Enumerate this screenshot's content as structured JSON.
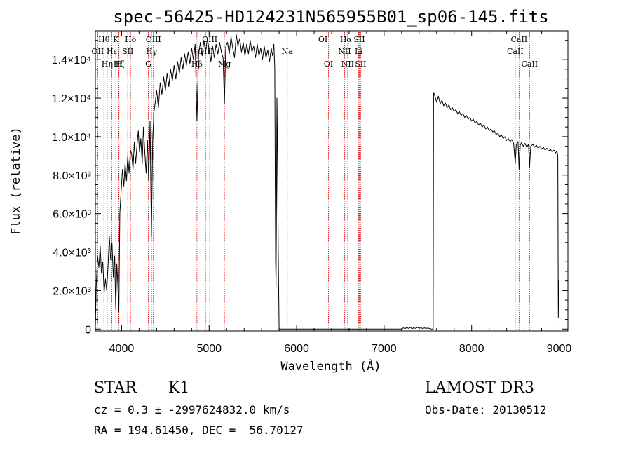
{
  "chart_data": {
    "type": "line",
    "title": "spec-56425-HD124231N565955B01_sp06-145.fits",
    "xlabel": "Wavelength (Å)",
    "ylabel": "Flux (relative)",
    "xlim": [
      3700,
      9100
    ],
    "ylim": [
      -100,
      15500
    ],
    "x_ticks": [
      {
        "value": 4000,
        "label": "4000"
      },
      {
        "value": 5000,
        "label": "5000"
      },
      {
        "value": 6000,
        "label": "6000"
      },
      {
        "value": 7000,
        "label": "7000"
      },
      {
        "value": 8000,
        "label": "8000"
      },
      {
        "value": 9000,
        "label": "9000"
      }
    ],
    "y_ticks": [
      {
        "value": 0,
        "label": "0"
      },
      {
        "value": 2000,
        "label": "2.0×10³"
      },
      {
        "value": 4000,
        "label": "4.0×10³"
      },
      {
        "value": 6000,
        "label": "6.0×10³"
      },
      {
        "value": 8000,
        "label": "8.0×10³"
      },
      {
        "value": 10000,
        "label": "1.0×10⁴"
      },
      {
        "value": 12000,
        "label": "1.2×10⁴"
      },
      {
        "value": 14000,
        "label": "1.4×10⁴"
      }
    ],
    "grid": false,
    "legend": "none",
    "series_color": "#000000",
    "line_marker_color": "#cc0000",
    "spectrum": [
      [
        3700,
        0
      ],
      [
        3710,
        2200
      ],
      [
        3725,
        3800
      ],
      [
        3740,
        3200
      ],
      [
        3755,
        4300
      ],
      [
        3770,
        2900
      ],
      [
        3785,
        3500
      ],
      [
        3800,
        1900
      ],
      [
        3815,
        2600
      ],
      [
        3830,
        2000
      ],
      [
        3845,
        3300
      ],
      [
        3860,
        4800
      ],
      [
        3875,
        3600
      ],
      [
        3890,
        4500
      ],
      [
        3905,
        2700
      ],
      [
        3920,
        3800
      ],
      [
        3933,
        1000
      ],
      [
        3945,
        3400
      ],
      [
        3955,
        2500
      ],
      [
        3968,
        900
      ],
      [
        3980,
        6000
      ],
      [
        3995,
        7200
      ],
      [
        4010,
        8300
      ],
      [
        4025,
        7400
      ],
      [
        4040,
        8600
      ],
      [
        4055,
        7700
      ],
      [
        4070,
        9000
      ],
      [
        4085,
        8100
      ],
      [
        4100,
        9300
      ],
      [
        4115,
        9100
      ],
      [
        4130,
        8300
      ],
      [
        4145,
        9700
      ],
      [
        4160,
        8600
      ],
      [
        4175,
        9500
      ],
      [
        4190,
        10300
      ],
      [
        4205,
        9200
      ],
      [
        4220,
        9900
      ],
      [
        4235,
        8600
      ],
      [
        4250,
        10500
      ],
      [
        4265,
        9200
      ],
      [
        4280,
        8100
      ],
      [
        4295,
        9800
      ],
      [
        4310,
        7700
      ],
      [
        4325,
        10800
      ],
      [
        4340,
        4800
      ],
      [
        4355,
        9900
      ],
      [
        4370,
        11300
      ],
      [
        4385,
        11800
      ],
      [
        4400,
        12400
      ],
      [
        4420,
        11500
      ],
      [
        4440,
        12800
      ],
      [
        4460,
        12200
      ],
      [
        4480,
        13100
      ],
      [
        4500,
        12400
      ],
      [
        4520,
        13300
      ],
      [
        4540,
        12600
      ],
      [
        4560,
        13500
      ],
      [
        4580,
        12900
      ],
      [
        4600,
        13700
      ],
      [
        4620,
        13000
      ],
      [
        4640,
        13900
      ],
      [
        4660,
        13300
      ],
      [
        4680,
        14100
      ],
      [
        4700,
        13500
      ],
      [
        4720,
        14300
      ],
      [
        4740,
        13700
      ],
      [
        4760,
        14400
      ],
      [
        4780,
        13800
      ],
      [
        4800,
        14600
      ],
      [
        4820,
        14000
      ],
      [
        4840,
        14800
      ],
      [
        4861,
        10800
      ],
      [
        4880,
        14300
      ],
      [
        4900,
        14900
      ],
      [
        4920,
        14200
      ],
      [
        4940,
        15000
      ],
      [
        4960,
        14400
      ],
      [
        4980,
        15100
      ],
      [
        5000,
        14500
      ],
      [
        5020,
        13900
      ],
      [
        5040,
        14700
      ],
      [
        5060,
        14100
      ],
      [
        5080,
        14800
      ],
      [
        5100,
        14300
      ],
      [
        5120,
        14900
      ],
      [
        5140,
        14400
      ],
      [
        5160,
        14100
      ],
      [
        5175,
        11700
      ],
      [
        5190,
        14700
      ],
      [
        5210,
        14900
      ],
      [
        5230,
        14300
      ],
      [
        5250,
        15200
      ],
      [
        5270,
        14600
      ],
      [
        5290,
        14100
      ],
      [
        5310,
        15300
      ],
      [
        5330,
        14700
      ],
      [
        5350,
        15100
      ],
      [
        5370,
        14400
      ],
      [
        5390,
        14900
      ],
      [
        5410,
        14200
      ],
      [
        5430,
        14800
      ],
      [
        5450,
        14300
      ],
      [
        5470,
        15000
      ],
      [
        5490,
        14400
      ],
      [
        5510,
        14700
      ],
      [
        5530,
        14100
      ],
      [
        5550,
        14800
      ],
      [
        5570,
        14200
      ],
      [
        5590,
        14600
      ],
      [
        5610,
        14000
      ],
      [
        5630,
        14700
      ],
      [
        5650,
        14100
      ],
      [
        5670,
        14500
      ],
      [
        5690,
        13900
      ],
      [
        5710,
        14600
      ],
      [
        5725,
        14200
      ],
      [
        5740,
        14800
      ],
      [
        5750,
        13600
      ],
      [
        5755,
        8500
      ],
      [
        5760,
        3500
      ],
      [
        5765,
        2200
      ],
      [
        5770,
        6500
      ],
      [
        5775,
        12000
      ],
      [
        5780,
        10000
      ],
      [
        5790,
        4000
      ],
      [
        5800,
        0
      ],
      [
        5820,
        0
      ],
      [
        5840,
        0
      ],
      [
        6000,
        0
      ],
      [
        6500,
        0
      ],
      [
        7000,
        0
      ],
      [
        7200,
        0
      ],
      [
        7220,
        60
      ],
      [
        7240,
        20
      ],
      [
        7260,
        80
      ],
      [
        7280,
        30
      ],
      [
        7300,
        90
      ],
      [
        7320,
        10
      ],
      [
        7340,
        70
      ],
      [
        7360,
        30
      ],
      [
        7380,
        90
      ],
      [
        7400,
        40
      ],
      [
        7420,
        70
      ],
      [
        7440,
        20
      ],
      [
        7460,
        60
      ],
      [
        7480,
        30
      ],
      [
        7500,
        50
      ],
      [
        7540,
        0
      ],
      [
        7560,
        0
      ],
      [
        7565,
        12300
      ],
      [
        7580,
        12100
      ],
      [
        7600,
        11800
      ],
      [
        7620,
        12100
      ],
      [
        7640,
        11700
      ],
      [
        7660,
        11900
      ],
      [
        7680,
        11600
      ],
      [
        7700,
        11750
      ],
      [
        7720,
        11500
      ],
      [
        7740,
        11650
      ],
      [
        7760,
        11400
      ],
      [
        7780,
        11500
      ],
      [
        7800,
        11300
      ],
      [
        7820,
        11400
      ],
      [
        7840,
        11200
      ],
      [
        7860,
        11300
      ],
      [
        7880,
        11100
      ],
      [
        7900,
        11200
      ],
      [
        7920,
        11000
      ],
      [
        7940,
        11100
      ],
      [
        7960,
        10900
      ],
      [
        7980,
        11000
      ],
      [
        8000,
        10800
      ],
      [
        8020,
        10900
      ],
      [
        8040,
        10700
      ],
      [
        8060,
        10800
      ],
      [
        8080,
        10600
      ],
      [
        8100,
        10700
      ],
      [
        8120,
        10500
      ],
      [
        8140,
        10600
      ],
      [
        8160,
        10400
      ],
      [
        8180,
        10500
      ],
      [
        8200,
        10300
      ],
      [
        8220,
        10400
      ],
      [
        8240,
        10250
      ],
      [
        8260,
        10300
      ],
      [
        8280,
        10100
      ],
      [
        8300,
        10200
      ],
      [
        8320,
        10000
      ],
      [
        8340,
        10100
      ],
      [
        8360,
        9900
      ],
      [
        8380,
        10000
      ],
      [
        8400,
        9800
      ],
      [
        8420,
        9900
      ],
      [
        8440,
        9750
      ],
      [
        8460,
        9850
      ],
      [
        8480,
        9650
      ],
      [
        8498,
        8600
      ],
      [
        8510,
        9600
      ],
      [
        8530,
        9750
      ],
      [
        8542,
        8300
      ],
      [
        8555,
        9550
      ],
      [
        8570,
        9700
      ],
      [
        8590,
        9500
      ],
      [
        8610,
        9650
      ],
      [
        8630,
        9450
      ],
      [
        8650,
        9600
      ],
      [
        8662,
        8400
      ],
      [
        8675,
        9500
      ],
      [
        8700,
        9600
      ],
      [
        8720,
        9450
      ],
      [
        8740,
        9550
      ],
      [
        8760,
        9400
      ],
      [
        8780,
        9500
      ],
      [
        8800,
        9350
      ],
      [
        8820,
        9450
      ],
      [
        8840,
        9300
      ],
      [
        8860,
        9400
      ],
      [
        8880,
        9250
      ],
      [
        8900,
        9350
      ],
      [
        8920,
        9200
      ],
      [
        8940,
        9300
      ],
      [
        8960,
        9150
      ],
      [
        8975,
        9250
      ],
      [
        8985,
        9000
      ],
      [
        8990,
        600
      ],
      [
        8995,
        2500
      ],
      [
        9000,
        1800
      ]
    ],
    "line_markers": [
      {
        "label": "Hθ",
        "wavelength": 3798,
        "row": 0
      },
      {
        "label": "OII",
        "wavelength": 3727,
        "row": 1
      },
      {
        "label": "Hη",
        "wavelength": 3835,
        "row": 2
      },
      {
        "label": "Hε",
        "wavelength": 3889,
        "row": 1
      },
      {
        "label": "K",
        "wavelength": 3934,
        "row": 0
      },
      {
        "label": "Hζ",
        "wavelength": 3970,
        "row": 2
      },
      {
        "label": "SII",
        "wavelength": 4070,
        "row": 1
      },
      {
        "label": "H",
        "wavelength": 3969,
        "row": 2
      },
      {
        "label": "Hδ",
        "wavelength": 4102,
        "row": 0
      },
      {
        "label": "OIII",
        "wavelength": 4363,
        "row": 0
      },
      {
        "label": "Hγ",
        "wavelength": 4341,
        "row": 1
      },
      {
        "label": "G",
        "wavelength": 4305,
        "row": 2
      },
      {
        "label": "OIII",
        "wavelength": 5007,
        "row": 0
      },
      {
        "label": "OIII",
        "wavelength": 4959,
        "row": 1
      },
      {
        "label": "Hβ",
        "wavelength": 4861,
        "row": 2
      },
      {
        "label": "Mg",
        "wavelength": 5175,
        "row": 2
      },
      {
        "label": "Na",
        "wavelength": 5893,
        "row": 1
      },
      {
        "label": "OI",
        "wavelength": 6300,
        "row": 0
      },
      {
        "label": "OI",
        "wavelength": 6364,
        "row": 2
      },
      {
        "label": "Hα",
        "wavelength": 6563,
        "row": 0
      },
      {
        "label": "SII",
        "wavelength": 6716,
        "row": 0
      },
      {
        "label": "NII",
        "wavelength": 6548,
        "row": 1
      },
      {
        "label": "Li",
        "wavelength": 6708,
        "row": 1
      },
      {
        "label": "NII",
        "wavelength": 6584,
        "row": 2
      },
      {
        "label": "SII",
        "wavelength": 6731,
        "row": 2
      },
      {
        "label": "CaII",
        "wavelength": 8542,
        "row": 0
      },
      {
        "label": "CaII",
        "wavelength": 8498,
        "row": 1
      },
      {
        "label": "CaII",
        "wavelength": 8662,
        "row": 2
      }
    ]
  },
  "info": {
    "class_label": "STAR",
    "subclass_label": "K1",
    "survey_label": "LAMOST DR3",
    "cz_line": "cz = 0.3 ± -2997624832.0 km/s",
    "obs_date_line": "Obs-Date: 20130512",
    "radec_line": "RA = 194.61450, DEC =  56.70127"
  }
}
